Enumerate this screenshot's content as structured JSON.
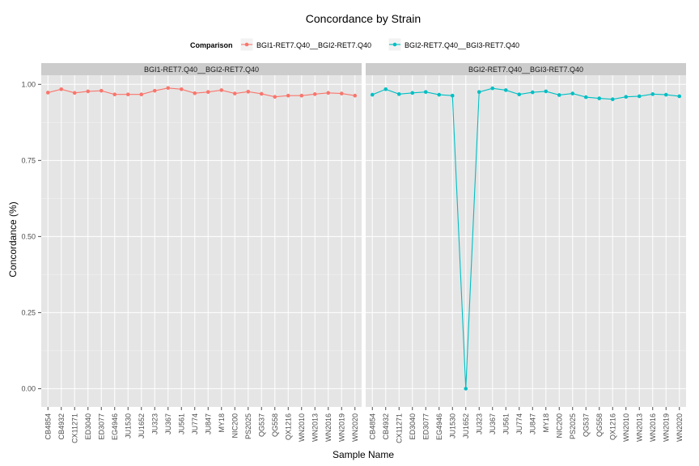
{
  "chart_data": {
    "type": "line",
    "title": "Concordance by Strain",
    "xlabel": "Sample Name",
    "ylabel": "Concordance (%)",
    "ylim": [
      -0.06,
      1.03
    ],
    "yticks": [
      "0.00",
      "0.25",
      "0.50",
      "0.75",
      "1.00"
    ],
    "grid": true,
    "legend": {
      "title": "Comparison",
      "position": "top"
    },
    "categories": [
      "CB4854",
      "CB4932",
      "CX11271",
      "ED3040",
      "ED3077",
      "EG4946",
      "JU1530",
      "JU1652",
      "JU323",
      "JU367",
      "JU561",
      "JU774",
      "JU847",
      "MY18",
      "NIC200",
      "PS2025",
      "QG537",
      "QG558",
      "QX1216",
      "WN2010",
      "WN2013",
      "WN2016",
      "WN2019",
      "WN2020"
    ],
    "series": [
      {
        "name": "BGI1-RET7.Q40__BGI2-RET7.Q40",
        "color": "#F8766D",
        "values": [
          0.973,
          0.984,
          0.972,
          0.977,
          0.979,
          0.967,
          0.967,
          0.967,
          0.979,
          0.988,
          0.984,
          0.971,
          0.975,
          0.981,
          0.97,
          0.976,
          0.969,
          0.959,
          0.963,
          0.963,
          0.968,
          0.972,
          0.97,
          0.963
        ]
      },
      {
        "name": "BGI2-RET7.Q40__BGI3-RET7.Q40",
        "color": "#00BFC4",
        "values": [
          0.966,
          0.984,
          0.968,
          0.972,
          0.975,
          0.966,
          0.963,
          0.0,
          0.975,
          0.987,
          0.981,
          0.967,
          0.974,
          0.977,
          0.965,
          0.97,
          0.958,
          0.954,
          0.951,
          0.959,
          0.961,
          0.968,
          0.966,
          0.961
        ]
      }
    ]
  }
}
